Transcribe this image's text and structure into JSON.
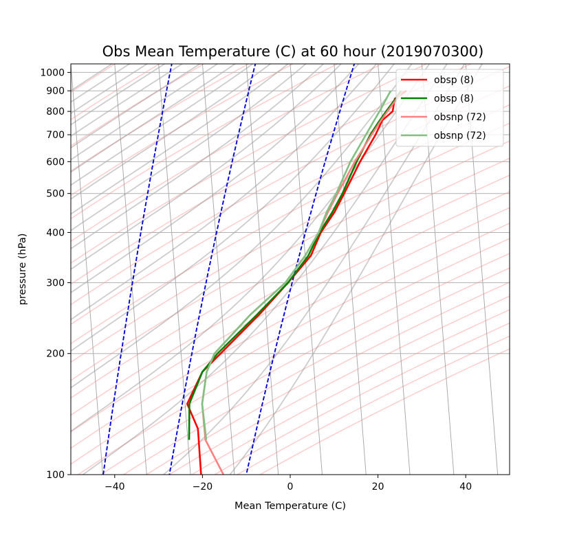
{
  "chart_data": {
    "type": "line",
    "title": "Obs Mean Temperature (C) at 60 hour (2019070300)",
    "xlabel": "Mean Temperature (C)",
    "ylabel": "pressure (hPa)",
    "xlim": [
      -50,
      50
    ],
    "ylim": [
      1050,
      100
    ],
    "y_scale": "log",
    "x_ticks": [
      -40,
      -20,
      0,
      20,
      40
    ],
    "x_tick_labels": [
      "−40",
      "−20",
      "0",
      "20",
      "40"
    ],
    "y_ticks": [
      100,
      200,
      300,
      400,
      500,
      600,
      700,
      800,
      900,
      1000
    ],
    "y_tick_labels": [
      "100",
      "200",
      "300",
      "400",
      "500",
      "600",
      "700",
      "800",
      "900",
      "1000"
    ],
    "grid": true,
    "legend_position": "upper right",
    "skew_t": true,
    "series": [
      {
        "name": "obsp (8)",
        "color": "#ff0000",
        "points": [
          {
            "p": 900,
            "t": 26.0
          },
          {
            "p": 860,
            "t": 23.2
          },
          {
            "p": 800,
            "t": 22.5
          },
          {
            "p": 760,
            "t": 20.0
          },
          {
            "p": 700,
            "t": 18.2
          },
          {
            "p": 600,
            "t": 14.2
          },
          {
            "p": 500,
            "t": 10.0
          },
          {
            "p": 450,
            "t": 7.5
          },
          {
            "p": 400,
            "t": 4.0
          },
          {
            "p": 350,
            "t": 1.3
          },
          {
            "p": 300,
            "t": -4.4
          },
          {
            "p": 250,
            "t": -11.5
          },
          {
            "p": 200,
            "t": -21.0
          },
          {
            "p": 180,
            "t": -25.5
          },
          {
            "p": 150,
            "t": -29.5
          },
          {
            "p": 130,
            "t": -27.5
          },
          {
            "p": 100,
            "t": -27.6
          }
        ]
      },
      {
        "name": "obsp (8)",
        "color": "#008000",
        "points": [
          {
            "p": 900,
            "t": 24.8
          },
          {
            "p": 850,
            "t": 23.0
          },
          {
            "p": 800,
            "t": 21.0
          },
          {
            "p": 750,
            "t": 19.0
          },
          {
            "p": 700,
            "t": 17.0
          },
          {
            "p": 600,
            "t": 13.4
          },
          {
            "p": 500,
            "t": 9.6
          },
          {
            "p": 450,
            "t": 7.0
          },
          {
            "p": 400,
            "t": 3.7
          },
          {
            "p": 350,
            "t": 0.7
          },
          {
            "p": 300,
            "t": -4.4
          },
          {
            "p": 250,
            "t": -12.0
          },
          {
            "p": 200,
            "t": -21.7
          },
          {
            "p": 180,
            "t": -25.5
          },
          {
            "p": 150,
            "t": -29.0
          },
          {
            "p": 122,
            "t": -29.7
          }
        ]
      },
      {
        "name": "obsnp (72)",
        "color": "#ff8080",
        "points": [
          {
            "p": 900,
            "t": 25.2
          },
          {
            "p": 850,
            "t": 23.3
          },
          {
            "p": 800,
            "t": 21.3
          },
          {
            "p": 750,
            "t": 19.3
          },
          {
            "p": 700,
            "t": 17.3
          },
          {
            "p": 600,
            "t": 13.0
          },
          {
            "p": 500,
            "t": 8.5
          },
          {
            "p": 450,
            "t": 6.0
          },
          {
            "p": 400,
            "t": 3.5
          },
          {
            "p": 350,
            "t": 0.0
          },
          {
            "p": 300,
            "t": -5.0
          },
          {
            "p": 250,
            "t": -13.5
          },
          {
            "p": 200,
            "t": -22.4
          },
          {
            "p": 180,
            "t": -24.5
          },
          {
            "p": 150,
            "t": -26.1
          },
          {
            "p": 122,
            "t": -26.0
          },
          {
            "p": 100,
            "t": -22.5
          }
        ]
      },
      {
        "name": "obsnp (72)",
        "color": "#80c080",
        "points": [
          {
            "p": 900,
            "t": 22.4
          },
          {
            "p": 850,
            "t": 21.0
          },
          {
            "p": 800,
            "t": 19.5
          },
          {
            "p": 750,
            "t": 17.8
          },
          {
            "p": 700,
            "t": 16.0
          },
          {
            "p": 600,
            "t": 12.0
          },
          {
            "p": 500,
            "t": 8.2
          },
          {
            "p": 450,
            "t": 5.7
          },
          {
            "p": 400,
            "t": 3.5
          },
          {
            "p": 350,
            "t": 0.0
          },
          {
            "p": 300,
            "t": -5.0
          },
          {
            "p": 250,
            "t": -13.5
          },
          {
            "p": 200,
            "t": -22.4
          },
          {
            "p": 180,
            "t": -24.5
          },
          {
            "p": 150,
            "t": -26.1
          },
          {
            "p": 122,
            "t": -25.8
          }
        ]
      }
    ]
  }
}
